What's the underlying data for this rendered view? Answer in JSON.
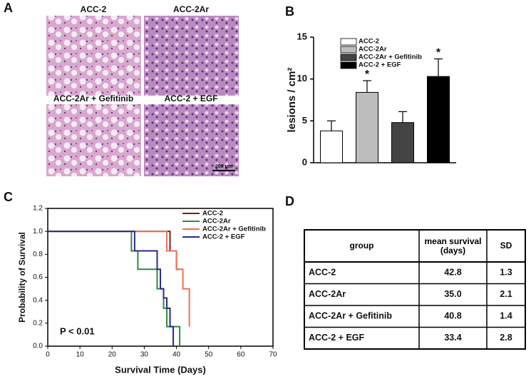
{
  "panel_labels": [
    "A",
    "B",
    "C",
    "D"
  ],
  "micrographs": {
    "labels": [
      "ACC-2",
      "ACC-2Ar",
      "ACC-2Ar + Gefitinib",
      "ACC-2 + EGF"
    ],
    "scale_bar": "200 μm"
  },
  "chart_data": [
    {
      "type": "bar",
      "ylabel": "lesions / cm²",
      "categories": [
        "ACC-2",
        "ACC-2Ar",
        "ACC-2Ar + Gefitinib",
        "ACC-2 + EGF"
      ],
      "values": [
        3.8,
        8.4,
        4.8,
        10.3
      ],
      "errors": [
        1.2,
        1.4,
        1.3,
        2.1
      ],
      "colors": [
        "#ffffff",
        "#bdbdbd",
        "#444444",
        "#000000"
      ],
      "ylim": [
        0,
        15
      ],
      "yticks": [
        0,
        5,
        10,
        15
      ],
      "legend": "upper-left",
      "annotations": [
        {
          "text": "*",
          "category": "ACC-2Ar"
        },
        {
          "text": "*",
          "category": "ACC-2 + EGF"
        }
      ]
    },
    {
      "type": "step",
      "xlabel": "Survival Time (Days)",
      "ylabel": "Probability of Survival",
      "xlim": [
        0,
        70
      ],
      "xticks": [
        0,
        10,
        20,
        30,
        40,
        50,
        60,
        70
      ],
      "ylim": [
        0,
        1.2
      ],
      "yticks": [
        {
          "value": 0,
          "label": "0.0"
        },
        0.2,
        0.4,
        0.6,
        0.8,
        {
          "value": 1,
          "label": "1.0"
        },
        1.2
      ],
      "legend": "upper-right",
      "annotations": [
        {
          "text": "P < 0.01"
        }
      ],
      "series": [
        {
          "name": "ACC-2",
          "color": "#7b1e1e",
          "x": [
            0,
            38,
            40,
            41
          ],
          "values": [
            1,
            0.83,
            0.67,
            0.67
          ]
        },
        {
          "name": "ACC-2Ar",
          "color": "#2e8b3e",
          "x": [
            0,
            26,
            28,
            34,
            36,
            37,
            41
          ],
          "values": [
            1,
            0.83,
            0.67,
            0.5,
            0.33,
            0.17,
            0
          ]
        },
        {
          "name": "ACC-2Ar + Gefitinib",
          "color": "#f07050",
          "x": [
            0,
            37,
            40,
            42,
            44
          ],
          "values": [
            1,
            0.83,
            0.67,
            0.5,
            0.17
          ]
        },
        {
          "name": "ACC-2 + EGF",
          "color": "#2a2a8a",
          "x": [
            0,
            27,
            34,
            35,
            36,
            37,
            38,
            39
          ],
          "values": [
            1,
            0.83,
            0.67,
            0.5,
            0.42,
            0.33,
            0.17,
            0
          ]
        }
      ]
    }
  ],
  "table": {
    "header": [
      "group",
      "mean survival (days)",
      "SD"
    ],
    "rows": [
      [
        "ACC-2",
        "42.8",
        "1.3"
      ],
      [
        "ACC-2Ar",
        "35.0",
        "2.1"
      ],
      [
        "ACC-2Ar + Gefitinib",
        "40.8",
        "1.4"
      ],
      [
        "ACC-2 + EGF",
        "33.4",
        "2.8"
      ]
    ]
  }
}
